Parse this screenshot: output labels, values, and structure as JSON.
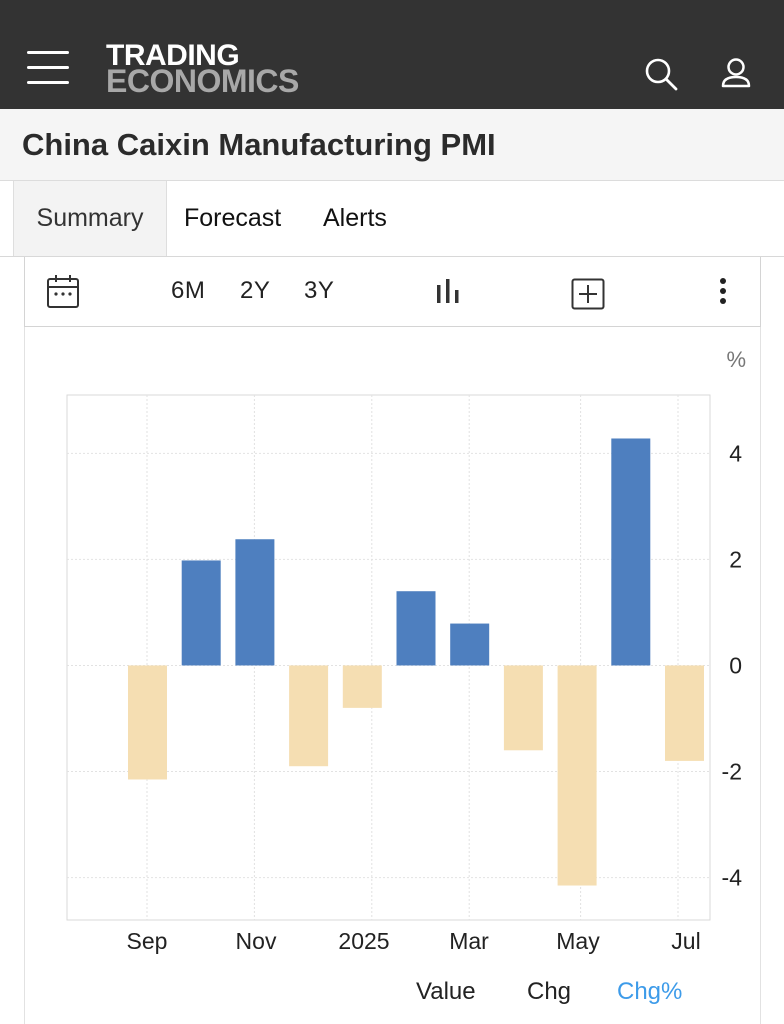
{
  "header": {
    "logo_line1": "TRADING",
    "logo_line2": "ECONOMICS",
    "icons": [
      "hamburger-menu-icon",
      "search-icon",
      "user-icon"
    ]
  },
  "page": {
    "title": "China Caixin Manufacturing PMI"
  },
  "tabs": [
    {
      "label": "Summary",
      "active": true
    },
    {
      "label": "Forecast",
      "active": false
    },
    {
      "label": "Alerts",
      "active": false
    }
  ],
  "toolbar": {
    "range_buttons": [
      "6M",
      "2Y",
      "3Y"
    ],
    "icons": [
      "calendar-icon",
      "bar-chart-icon",
      "add-icon",
      "more-vertical-icon"
    ]
  },
  "chart_data": {
    "type": "bar",
    "title": "",
    "unit": "%",
    "x_ticks": [
      "Sep",
      "Nov",
      "2025",
      "Mar",
      "May",
      "Jul"
    ],
    "y_ticks": [
      4,
      2,
      0,
      -2,
      -4
    ],
    "ylim": [
      -4.8,
      5.1
    ],
    "grid": true,
    "y_axis_position": "right",
    "categories": [
      "Sep 2024",
      "Oct 2024",
      "Nov 2024",
      "Dec 2024",
      "Jan 2025",
      "Feb 2025",
      "Mar 2025",
      "Apr 2025",
      "May 2025",
      "Jun 2025",
      "Jul 2025"
    ],
    "values": [
      -2.15,
      1.98,
      2.38,
      -1.9,
      -0.8,
      1.4,
      0.79,
      -1.6,
      -4.15,
      4.28,
      -1.8
    ],
    "colors": {
      "positive": "#4e7fbf",
      "negative": "#f5deb2"
    }
  },
  "legend": {
    "items": [
      {
        "label": "Value",
        "active": false
      },
      {
        "label": "Chg",
        "active": false
      },
      {
        "label": "Chg%",
        "active": true
      }
    ],
    "active_color": "#3d9be9"
  }
}
